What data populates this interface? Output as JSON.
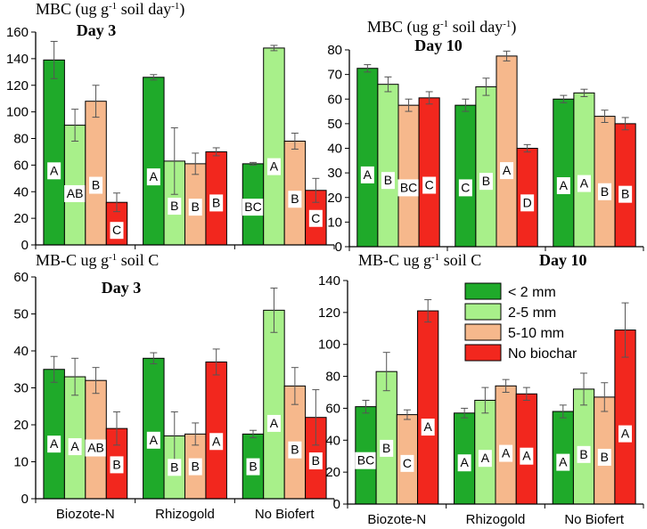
{
  "colors": [
    "#1faa2a",
    "#a8f08a",
    "#f6b88c",
    "#f2271e"
  ],
  "legend": [
    "< 2 mm",
    "2-5 mm",
    "5-10 mm",
    "No biochar"
  ],
  "chart_data": [
    {
      "type": "bar",
      "title_parts": [
        {
          "t": "MBC (ug g",
          "s": 0
        },
        {
          "t": "-1",
          "s": 1
        },
        {
          "t": " soil day",
          "s": 0
        },
        {
          "t": "-1",
          "s": 1
        },
        {
          "t": ")",
          "s": 0
        }
      ],
      "subtitle": "Day 3",
      "categories": [
        "Biozote-N",
        "Rhizogold",
        "No Biofert"
      ],
      "show_categories": false,
      "ylim": [
        0,
        160
      ],
      "yticks": [
        0,
        20,
        40,
        60,
        80,
        100,
        120,
        140,
        160
      ],
      "series": [
        {
          "name": "< 2 mm",
          "values": [
            139,
            126,
            61
          ],
          "errors": [
            14,
            2,
            1
          ],
          "labels": [
            "A",
            "A",
            "BC"
          ]
        },
        {
          "name": "2-5 mm",
          "values": [
            90,
            63,
            148
          ],
          "errors": [
            12,
            25,
            2
          ],
          "labels": [
            "AB",
            "B",
            "A"
          ]
        },
        {
          "name": "5-10 mm",
          "values": [
            108,
            61,
            78
          ],
          "errors": [
            12,
            8,
            6
          ],
          "labels": [
            "B",
            "B",
            "B"
          ]
        },
        {
          "name": "No biochar",
          "values": [
            32,
            70,
            41
          ],
          "errors": [
            7,
            3,
            9
          ],
          "labels": [
            "C",
            "B",
            "C"
          ]
        }
      ]
    },
    {
      "type": "bar",
      "title_parts": [
        {
          "t": "MBC (ug g",
          "s": 0
        },
        {
          "t": "-1",
          "s": 1
        },
        {
          "t": " soil day",
          "s": 0
        },
        {
          "t": "-1",
          "s": 1
        },
        {
          "t": ")",
          "s": 0
        }
      ],
      "subtitle": "Day 10",
      "categories": [
        "Biozote-N",
        "Rhizogold",
        "No Biofert"
      ],
      "show_categories": false,
      "ylim": [
        0,
        80
      ],
      "yticks": [
        0,
        10,
        20,
        30,
        40,
        50,
        60,
        70,
        80
      ],
      "series": [
        {
          "name": "< 2 mm",
          "values": [
            72.5,
            57.5,
            60
          ],
          "errors": [
            1.5,
            2.5,
            1.5
          ],
          "labels": [
            "A",
            "C",
            "A"
          ]
        },
        {
          "name": "2-5 mm",
          "values": [
            66,
            65,
            62.5
          ],
          "errors": [
            3,
            3.5,
            1.5
          ],
          "labels": [
            "B",
            "B",
            "A"
          ]
        },
        {
          "name": "5-10 mm",
          "values": [
            57.5,
            77.5,
            53
          ],
          "errors": [
            2.5,
            2,
            2.5
          ],
          "labels": [
            "BC",
            "A",
            "B"
          ]
        },
        {
          "name": "No biochar",
          "values": [
            60.5,
            40,
            50
          ],
          "errors": [
            2.5,
            1.5,
            2.5
          ],
          "labels": [
            "C",
            "D",
            "B"
          ]
        }
      ]
    },
    {
      "type": "bar",
      "title_parts": [
        {
          "t": "MB-C ug g",
          "s": 0
        },
        {
          "t": "-1",
          "s": 1
        },
        {
          "t": " soil C",
          "s": 0
        }
      ],
      "subtitle": "Day 3",
      "categories": [
        "Biozote-N",
        "Rhizogold",
        "No Biofert"
      ],
      "show_categories": true,
      "ylim": [
        0,
        60
      ],
      "yticks": [
        0,
        10,
        20,
        30,
        40,
        50,
        60
      ],
      "series": [
        {
          "name": "< 2 mm",
          "values": [
            35,
            38,
            17.5
          ],
          "errors": [
            3.5,
            1.5,
            1
          ],
          "labels": [
            "A",
            "A",
            "B"
          ]
        },
        {
          "name": "2-5 mm",
          "values": [
            33,
            17,
            51
          ],
          "errors": [
            5,
            6.5,
            6
          ],
          "labels": [
            "A",
            "B",
            "A"
          ]
        },
        {
          "name": "5-10 mm",
          "values": [
            32,
            17.5,
            30.5
          ],
          "errors": [
            3.5,
            3,
            5
          ],
          "labels": [
            "AB",
            "B",
            "B"
          ]
        },
        {
          "name": "No biochar",
          "values": [
            19,
            37,
            22
          ],
          "errors": [
            4.5,
            3.5,
            7.5
          ],
          "labels": [
            "B",
            "A",
            "B"
          ]
        }
      ]
    },
    {
      "type": "bar",
      "title_parts": [
        {
          "t": "MB-C ug g",
          "s": 0
        },
        {
          "t": "-1",
          "s": 1
        },
        {
          "t": " soil C",
          "s": 0
        }
      ],
      "subtitle": "Day 10",
      "categories": [
        "Biozote-N",
        "Rhizogold",
        "No Biofert"
      ],
      "show_categories": true,
      "ylim": [
        0,
        140
      ],
      "yticks": [
        0,
        20,
        40,
        60,
        80,
        100,
        120,
        140
      ],
      "series": [
        {
          "name": "< 2 mm",
          "values": [
            61,
            57,
            58
          ],
          "errors": [
            4,
            3,
            4
          ],
          "labels": [
            "BC",
            "A",
            "A"
          ]
        },
        {
          "name": "2-5 mm",
          "values": [
            83,
            65,
            72
          ],
          "errors": [
            12,
            8,
            10
          ],
          "labels": [
            "B",
            "A",
            "B"
          ]
        },
        {
          "name": "5-10 mm",
          "values": [
            56,
            74,
            67
          ],
          "errors": [
            3,
            4,
            9
          ],
          "labels": [
            "C",
            "A",
            "B"
          ]
        },
        {
          "name": "No biochar",
          "values": [
            121,
            69,
            109
          ],
          "errors": [
            7,
            4,
            17
          ],
          "labels": [
            "A",
            "A",
            "A"
          ]
        }
      ]
    }
  ]
}
